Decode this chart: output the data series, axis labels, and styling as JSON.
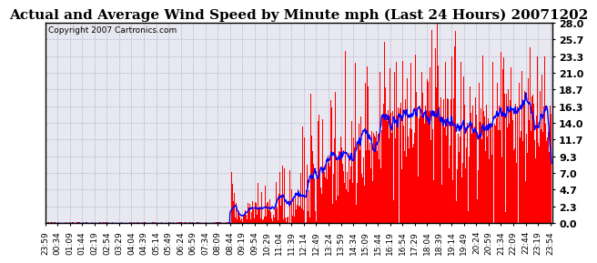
{
  "title": "Actual and Average Wind Speed by Minute mph (Last 24 Hours) 20071202",
  "copyright_text": "Copyright 2007 Cartronics.com",
  "ymin": 0.0,
  "ymax": 28.0,
  "yticks": [
    0.0,
    2.3,
    4.7,
    7.0,
    9.3,
    11.7,
    14.0,
    16.3,
    18.7,
    21.0,
    23.3,
    25.7,
    28.0
  ],
  "bar_color": "#FF0000",
  "avg_line_color": "#0000FF",
  "bg_color": "#FFFFFF",
  "plot_bg_color": "#E8E8F0",
  "grid_color": "#AAAACC",
  "title_fontsize": 11,
  "copyright_fontsize": 6.5,
  "tick_label_fontsize": 6.5,
  "ytick_label_fontsize": 8
}
